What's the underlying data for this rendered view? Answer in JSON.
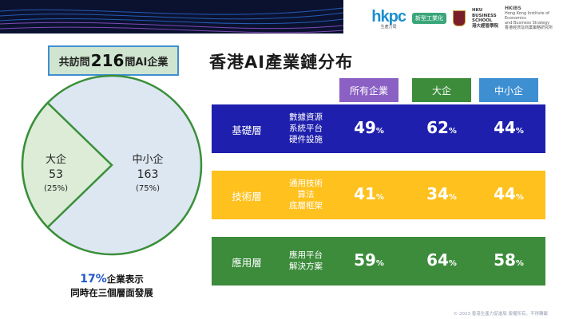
{
  "header": {
    "logo_text": "hkpc",
    "logo_subtext": "生產力局",
    "tag": "新型工業化",
    "hku_lines": [
      "HKU",
      "BUSINESS",
      "SCHOOL",
      "港大經管學院"
    ],
    "hkibs_lines": [
      "HKIBS",
      "Hong Kong Institute of Economics",
      "and Business Strategy",
      "香港經濟及商業策略研究所"
    ]
  },
  "summary": {
    "prefix": "共訪問",
    "count": "216",
    "suffix": "間AI企業"
  },
  "pie": {
    "slices": [
      {
        "name": "大企",
        "value": "53",
        "percent": "(25%)",
        "number": 53,
        "color": "#dcecd7"
      },
      {
        "name": "中小企",
        "value": "163",
        "percent": "(75%)",
        "number": 163,
        "color": "#dde7f1"
      }
    ],
    "border_color": "#3a8f3a"
  },
  "note": {
    "highlight": "17%",
    "line1_rest": "企業表示",
    "line2": "同時在三個層面發展"
  },
  "chart_data": {
    "type": "table",
    "title": "香港AI產業鏈分布",
    "columns": [
      {
        "label": "所有企業",
        "color": "#8a60c4"
      },
      {
        "label": "大企",
        "color": "#3c8c3c"
      },
      {
        "label": "中小企",
        "color": "#3e8fd2"
      }
    ],
    "rows": [
      {
        "layer": "基礎層",
        "desc": [
          "數據資源",
          "系統平台",
          "硬件設施"
        ],
        "values": [
          49,
          62,
          44
        ],
        "bg": "#1f1fad",
        "text_color": "#ffffff"
      },
      {
        "layer": "技術層",
        "desc": [
          "通用技術",
          "算法",
          "底層框架"
        ],
        "values": [
          41,
          34,
          44
        ],
        "bg": "#ffc11e",
        "text_color": "#ffffff"
      },
      {
        "layer": "應用層",
        "desc": [
          "應用平台",
          "解決方案"
        ],
        "values": [
          59,
          64,
          58
        ],
        "bg": "#3c8c3c",
        "text_color": "#ffffff"
      }
    ],
    "unit": "%"
  },
  "footer": "© 2023 香港生產力促進局 版權所有，不得轉載"
}
